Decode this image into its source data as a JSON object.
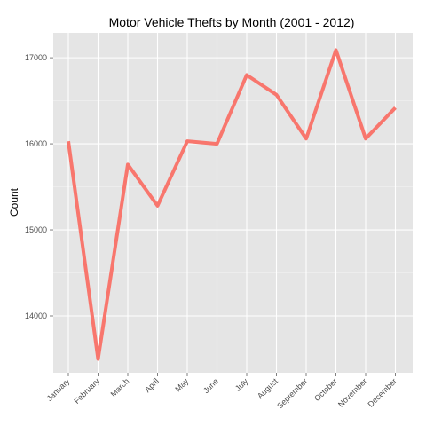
{
  "chart_data": {
    "type": "line",
    "title": "Motor Vehicle Thefts by Month (2001 - 2012)",
    "xlabel": "",
    "ylabel": "Count",
    "categories": [
      "January",
      "February",
      "March",
      "April",
      "May",
      "June",
      "July",
      "August",
      "September",
      "October",
      "November",
      "December"
    ],
    "series": [
      {
        "values": [
          16030,
          13500,
          15760,
          15280,
          16030,
          16000,
          16800,
          16570,
          16060,
          17090,
          16060,
          16420
        ]
      }
    ],
    "ylim": [
      13340,
      17290
    ],
    "yticks": [
      14000,
      15000,
      16000,
      17000
    ],
    "grid": true,
    "legend": "none",
    "colors": {
      "line": "#F8766D",
      "panel": "#E5E5E5",
      "grid_major": "#FFFFFF",
      "grid_minor": "#F2F2F2"
    }
  }
}
